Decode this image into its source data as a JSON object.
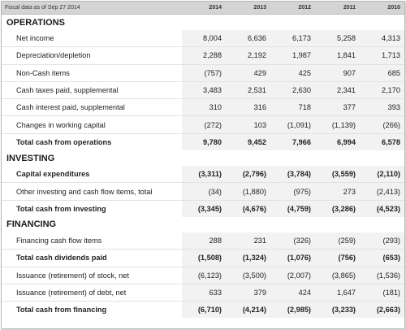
{
  "header": {
    "label": "Fiscal data as of Sep 27 2014",
    "years": [
      "2014",
      "2013",
      "2012",
      "2011",
      "2010"
    ]
  },
  "sections": [
    {
      "title": "OPERATIONS",
      "rows": [
        {
          "label": "Net income",
          "values": [
            "8,004",
            "6,636",
            "6,173",
            "5,258",
            "4,313"
          ],
          "bold": false
        },
        {
          "label": "Depreciation/depletion",
          "values": [
            "2,288",
            "2,192",
            "1,987",
            "1,841",
            "1,713"
          ],
          "bold": false
        },
        {
          "label": "Non-Cash items",
          "values": [
            "(757)",
            "429",
            "425",
            "907",
            "685"
          ],
          "bold": false
        },
        {
          "label": "Cash taxes paid, supplemental",
          "values": [
            "3,483",
            "2,531",
            "2,630",
            "2,341",
            "2,170"
          ],
          "bold": false
        },
        {
          "label": "Cash interest paid, supplemental",
          "values": [
            "310",
            "316",
            "718",
            "377",
            "393"
          ],
          "bold": false
        },
        {
          "label": "Changes in working capital",
          "values": [
            "(272)",
            "103",
            "(1,091)",
            "(1,139)",
            "(266)"
          ],
          "bold": false
        },
        {
          "label": "Total cash from operations",
          "values": [
            "9,780",
            "9,452",
            "7,966",
            "6,994",
            "6,578"
          ],
          "bold": true
        }
      ]
    },
    {
      "title": "INVESTING",
      "rows": [
        {
          "label": "Capital expenditures",
          "values": [
            "(3,311)",
            "(2,796)",
            "(3,784)",
            "(3,559)",
            "(2,110)"
          ],
          "bold": true
        },
        {
          "label": "Other investing and cash flow items, total",
          "values": [
            "(34)",
            "(1,880)",
            "(975)",
            "273",
            "(2,413)"
          ],
          "bold": false
        },
        {
          "label": "Total cash from investing",
          "values": [
            "(3,345)",
            "(4,676)",
            "(4,759)",
            "(3,286)",
            "(4,523)"
          ],
          "bold": true
        }
      ]
    },
    {
      "title": "FINANCING",
      "rows": [
        {
          "label": "Financing cash flow items",
          "values": [
            "288",
            "231",
            "(326)",
            "(259)",
            "(293)"
          ],
          "bold": false
        },
        {
          "label": "Total cash dividends paid",
          "values": [
            "(1,508)",
            "(1,324)",
            "(1,076)",
            "(756)",
            "(653)"
          ],
          "bold": true
        },
        {
          "label": "Issuance (retirement) of stock, net",
          "values": [
            "(6,123)",
            "(3,500)",
            "(2,007)",
            "(3,865)",
            "(1,536)"
          ],
          "bold": false
        },
        {
          "label": "Issuance (retirement) of debt, net",
          "values": [
            "633",
            "379",
            "424",
            "1,647",
            "(181)"
          ],
          "bold": false
        },
        {
          "label": "Total cash from financing",
          "values": [
            "(6,710)",
            "(4,214)",
            "(2,985)",
            "(3,233)",
            "(2,663)"
          ],
          "bold": true
        }
      ]
    }
  ]
}
